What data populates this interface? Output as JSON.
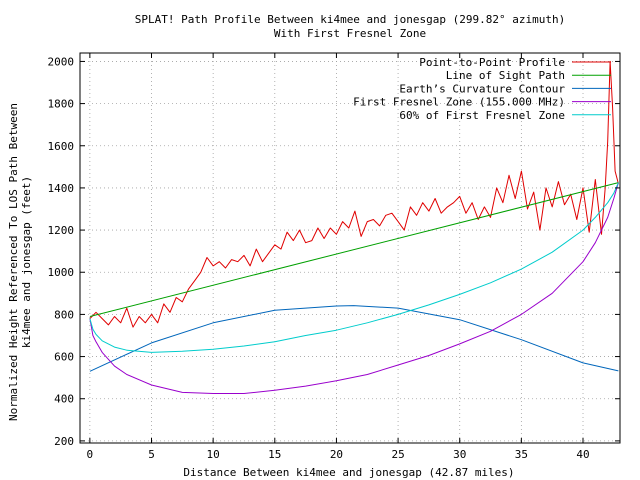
{
  "chart_data": {
    "type": "line",
    "title": "SPLAT! Path Profile Between ki4mee and jonesgap (299.82° azimuth)",
    "subtitle": "With First Fresnel Zone",
    "xlabel": "Distance Between ki4mee and jonesgap (42.87 miles)",
    "ylabel": [
      "Normalized Height Referenced To LOS Path Between",
      "ki4mee and jonesgap (feet)"
    ],
    "xlim": [
      -0.8,
      43
    ],
    "ylim": [
      190,
      2040
    ],
    "x_ticks": [
      0,
      5,
      10,
      15,
      20,
      25,
      30,
      35,
      40
    ],
    "y_ticks": [
      200,
      400,
      600,
      800,
      1000,
      1200,
      1400,
      1600,
      1800,
      2000
    ],
    "x_tick_labels": [
      "0",
      "5",
      "10",
      "15",
      "20",
      "25",
      "30",
      "35",
      "40"
    ],
    "y_tick_labels": [
      "200",
      "400",
      "600",
      "800",
      "1000",
      "1200",
      "1400",
      "1600",
      "1800",
      "2000"
    ],
    "grid": true,
    "legend_position": "top-right",
    "series": [
      {
        "name": "Point-to-Point Profile",
        "color": "#e00000",
        "x": [
          0,
          0.5,
          1,
          1.5,
          2,
          2.5,
          3,
          3.5,
          4,
          4.5,
          5,
          5.5,
          6,
          6.5,
          7,
          7.5,
          8,
          8.5,
          9,
          9.5,
          10,
          10.5,
          11,
          11.5,
          12,
          12.5,
          13,
          13.5,
          14,
          14.5,
          15,
          15.5,
          16,
          16.5,
          17,
          17.5,
          18,
          18.5,
          19,
          19.5,
          20,
          20.5,
          21,
          21.5,
          22,
          22.5,
          23,
          23.5,
          24,
          24.5,
          25,
          25.5,
          26,
          26.5,
          27,
          27.5,
          28,
          28.5,
          29,
          29.5,
          30,
          30.5,
          31,
          31.5,
          32,
          32.5,
          33,
          33.5,
          34,
          34.5,
          35,
          35.5,
          36,
          36.5,
          37,
          37.5,
          38,
          38.5,
          39,
          39.5,
          40,
          40.5,
          41,
          41.5,
          41.8,
          42,
          42.2,
          42.4,
          42.6,
          42.87
        ],
        "values": [
          780,
          810,
          780,
          750,
          790,
          760,
          830,
          740,
          790,
          760,
          800,
          760,
          850,
          810,
          880,
          860,
          920,
          960,
          1000,
          1070,
          1030,
          1050,
          1020,
          1060,
          1050,
          1080,
          1030,
          1110,
          1050,
          1090,
          1130,
          1110,
          1190,
          1150,
          1200,
          1140,
          1150,
          1210,
          1160,
          1210,
          1180,
          1240,
          1210,
          1290,
          1170,
          1240,
          1250,
          1220,
          1270,
          1280,
          1240,
          1200,
          1310,
          1270,
          1330,
          1290,
          1350,
          1280,
          1310,
          1330,
          1360,
          1280,
          1330,
          1250,
          1310,
          1260,
          1400,
          1330,
          1460,
          1350,
          1480,
          1300,
          1380,
          1200,
          1400,
          1310,
          1430,
          1320,
          1370,
          1250,
          1400,
          1190,
          1440,
          1180,
          1400,
          1620,
          2000,
          1780,
          1480,
          1420
        ]
      },
      {
        "name": "Line of Sight Path",
        "color": "#00a000",
        "x": [
          0,
          42.87
        ],
        "values": [
          790,
          1425
        ]
      },
      {
        "name": "Earth’s Curvature Contour",
        "color": "#0066bb",
        "x": [
          0,
          5,
          10,
          15,
          20,
          21.4,
          25,
          30,
          35,
          40,
          42.87
        ],
        "values": [
          530,
          665,
          760,
          820,
          840,
          842,
          830,
          775,
          680,
          570,
          532
        ]
      },
      {
        "name": "First Fresnel Zone (155.000 MHz)",
        "color": "#9900cc",
        "x": [
          0,
          0.25,
          0.5,
          1,
          2,
          3,
          5,
          7.5,
          10,
          12.5,
          15,
          17.5,
          20,
          22.5,
          25,
          27.5,
          30,
          32.5,
          35,
          37.5,
          40,
          41,
          42,
          42.5,
          42.87
        ],
        "values": [
          780,
          700,
          670,
          620,
          555,
          515,
          465,
          430,
          425,
          425,
          440,
          460,
          485,
          515,
          560,
          605,
          660,
          720,
          800,
          900,
          1050,
          1140,
          1260,
          1350,
          1425
        ]
      },
      {
        "name": "60% of First Fresnel Zone",
        "color": "#00cccc",
        "x": [
          0,
          0.25,
          0.5,
          1,
          2,
          3,
          5,
          7.5,
          10,
          12.5,
          15,
          17.5,
          20,
          22.5,
          25,
          27.5,
          30,
          32.5,
          35,
          37.5,
          40,
          41,
          42,
          42.5,
          42.87
        ],
        "values": [
          780,
          730,
          705,
          675,
          645,
          630,
          620,
          625,
          635,
          650,
          670,
          700,
          725,
          760,
          800,
          845,
          895,
          950,
          1015,
          1095,
          1200,
          1260,
          1330,
          1375,
          1425
        ]
      }
    ]
  }
}
